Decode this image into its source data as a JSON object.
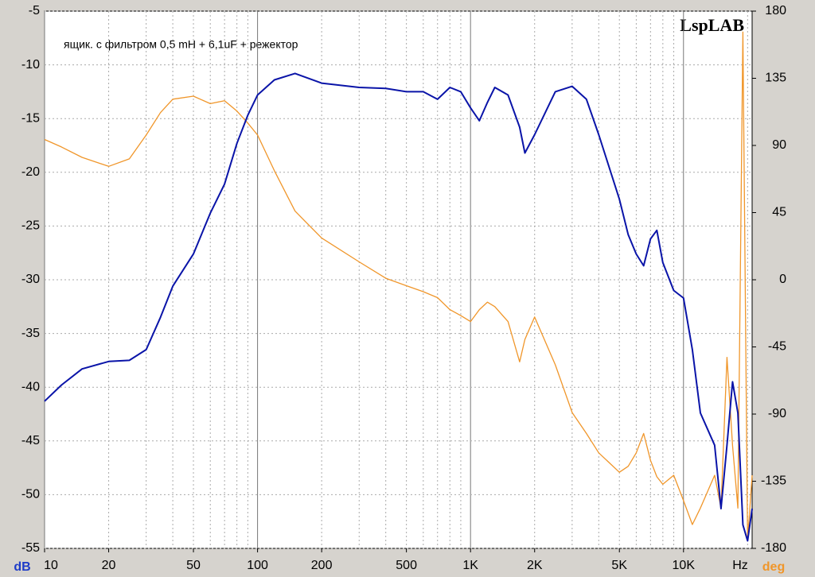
{
  "chart_data": {
    "type": "line",
    "title": "ящик. с фильтром 0,5 mH + 6,1uF + режектор",
    "watermark": "LspLAB",
    "y_label": "dB",
    "y2_label": "deg",
    "x_unit": "Hz",
    "log_x": true,
    "grid": true,
    "xlim": [
      10,
      21000
    ],
    "xticks": [
      10,
      20,
      50,
      100,
      200,
      500,
      {
        "value": 1000,
        "label": "1K"
      },
      {
        "value": 2000,
        "label": "2K"
      },
      {
        "value": 5000,
        "label": "5K"
      },
      {
        "value": 10000,
        "label": "10K"
      }
    ],
    "xgrid": [
      10,
      20,
      30,
      40,
      50,
      60,
      70,
      80,
      90,
      100,
      200,
      300,
      400,
      500,
      600,
      700,
      800,
      900,
      1000,
      2000,
      3000,
      4000,
      5000,
      6000,
      7000,
      8000,
      9000,
      10000,
      20000
    ],
    "ylim": [
      -55,
      -5
    ],
    "yticks": [
      -5,
      -10,
      -15,
      -20,
      -25,
      -30,
      -35,
      -40,
      -45,
      -50,
      -55
    ],
    "y2lim": [
      -180,
      180
    ],
    "y2ticks": [
      180,
      135,
      90,
      45,
      0,
      -45,
      -90,
      -135,
      -180
    ],
    "x": [
      10,
      12,
      15,
      20,
      25,
      30,
      35,
      40,
      50,
      60,
      70,
      80,
      90,
      100,
      120,
      150,
      200,
      300,
      400,
      500,
      600,
      700,
      800,
      900,
      1000,
      1100,
      1200,
      1300,
      1500,
      1700,
      1800,
      2000,
      2500,
      3000,
      3500,
      4000,
      5000,
      5500,
      6000,
      6500,
      7000,
      7500,
      8000,
      9000,
      10000,
      11000,
      12000,
      14000,
      15000,
      16000,
      17000,
      18000,
      19000,
      20000,
      21000
    ],
    "series": [
      {
        "color": "#0a14a8",
        "axis": "y",
        "values": [
          -41.3,
          -39.8,
          -38.3,
          -37.6,
          -37.5,
          -36.5,
          -33.5,
          -30.6,
          -27.6,
          -23.8,
          -21.1,
          -17.3,
          -14.7,
          -12.8,
          -11.4,
          -10.8,
          -11.7,
          -12.1,
          -12.2,
          -12.5,
          -12.5,
          -13.2,
          -12.1,
          -12.5,
          -14.0,
          -15.2,
          -13.5,
          -12.1,
          -12.8,
          -15.8,
          -18.2,
          -16.5,
          -12.5,
          -12.0,
          -13.2,
          -16.5,
          -22.5,
          -25.8,
          -27.6,
          -28.7,
          -26.2,
          -25.4,
          -28.4,
          -31.0,
          -31.7,
          -36.5,
          -42.4,
          -45.4,
          -51.3,
          -45.4,
          -39.5,
          -42.4,
          -52.8,
          -54.3,
          -51.3
        ]
      },
      {
        "color": "#f0962a",
        "axis": "y2",
        "values": [
          94,
          89,
          82,
          76,
          81,
          97,
          112,
          121,
          123,
          118,
          120,
          113,
          105,
          97,
          73,
          46,
          28,
          12,
          1,
          -4,
          -8,
          -12,
          -20,
          -24,
          -28,
          -20,
          -15,
          -18,
          -28,
          -55,
          -40,
          -25,
          -57,
          -89,
          -103,
          -116,
          -129,
          -125,
          -116,
          -103,
          -121,
          -132,
          -137,
          -131,
          -148,
          -164,
          -153,
          -131,
          -153,
          -52,
          -111,
          -153,
          166,
          -175,
          -131
        ]
      }
    ]
  }
}
